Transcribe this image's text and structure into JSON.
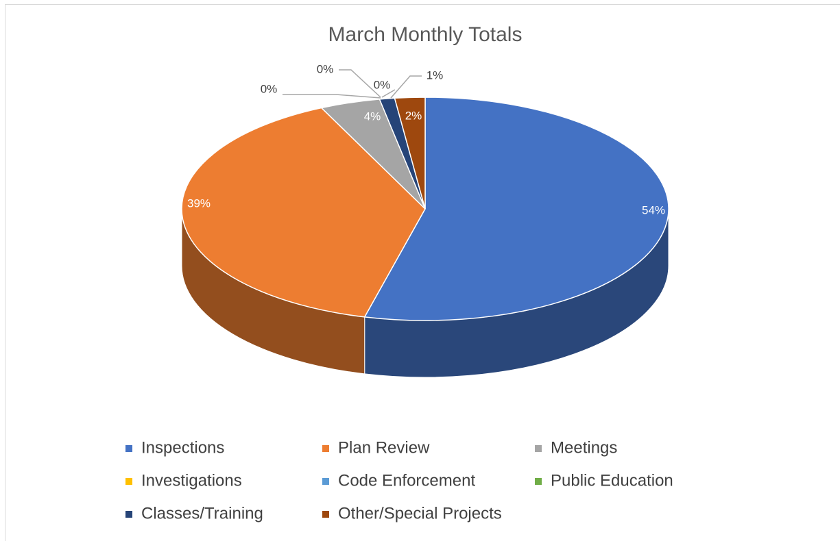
{
  "chart_data": {
    "type": "pie3d",
    "title": "March Monthly Totals",
    "categories": [
      "Inspections",
      "Plan Review",
      "Meetings",
      "Investigations",
      "Code Enforcement",
      "Public Education",
      "Classes/Training",
      "Other/Special Projects"
    ],
    "values": [
      54,
      39,
      4,
      0,
      0,
      0,
      1,
      2
    ],
    "value_labels": [
      "54%",
      "39%",
      "4%",
      "0%",
      "0%",
      "0%",
      "1%",
      "2%"
    ],
    "colors": [
      "#4472c4",
      "#ed7d31",
      "#a5a5a5",
      "#ffc000",
      "#5b9bd5",
      "#70ad47",
      "#264478",
      "#9e480e"
    ],
    "legend": "bottom"
  }
}
